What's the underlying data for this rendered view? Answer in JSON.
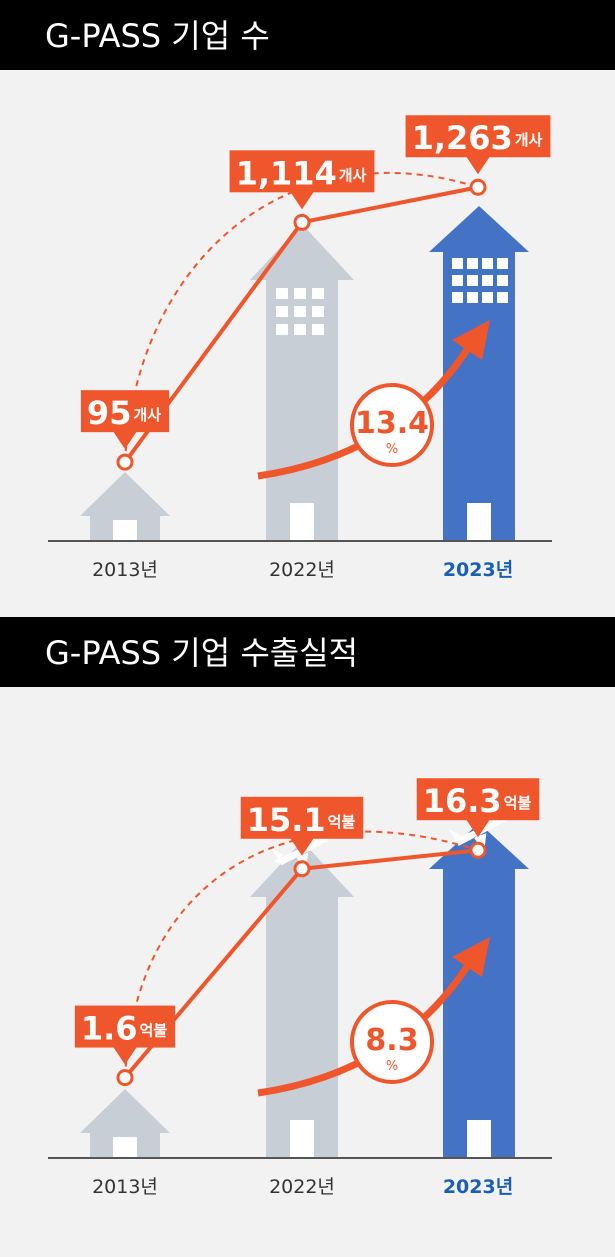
{
  "chart_data": [
    {
      "type": "line",
      "title": "G-PASS 기업 수",
      "categories": [
        "2013년",
        "2022년",
        "2023년"
      ],
      "values": [
        95,
        1114,
        1263
      ],
      "value_labels": [
        "95",
        "1,114",
        "1,263"
      ],
      "unit": "개사",
      "growth_rate": 13.4,
      "growth_unit": "%",
      "color": "#f0562c",
      "icon": "windows",
      "ylim": [
        -240,
        1400
      ]
    },
    {
      "type": "line",
      "title": "G-PASS 기업 수출실적",
      "categories": [
        "2013년",
        "2022년",
        "2023년"
      ],
      "values": [
        1.6,
        15.1,
        16.3
      ],
      "value_labels": [
        "1.6",
        "15.1",
        "16.3"
      ],
      "unit": "억불",
      "growth_rate": 8.3,
      "growth_unit": "%",
      "color": "#f0562c",
      "icon": "plane",
      "ylim": [
        -3.6,
        20
      ]
    }
  ]
}
